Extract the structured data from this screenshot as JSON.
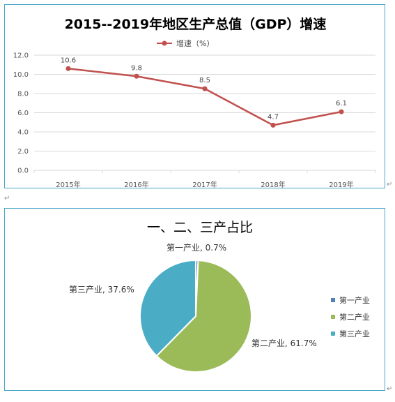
{
  "chart_data": [
    {
      "type": "line",
      "title": "2015--2019年地区生产总值（GDP）增速",
      "categories": [
        "2015年",
        "2016年",
        "2017年",
        "2018年",
        "2019年"
      ],
      "series": [
        {
          "name": "增速（%）",
          "values": [
            10.6,
            9.8,
            8.5,
            4.7,
            6.1
          ]
        }
      ],
      "data_labels": [
        "10.6",
        "9.8",
        "8.5",
        "4.7",
        "6.1"
      ],
      "yticks": [
        "0.0",
        "2.0",
        "4.0",
        "6.0",
        "8.0",
        "10.0",
        "12.0"
      ],
      "ylim": [
        0,
        12
      ],
      "grid": true,
      "legend": "top-center",
      "colors": {
        "line": "#c0504d"
      }
    },
    {
      "type": "pie",
      "title": "一、二、三产占比",
      "categories": [
        "第一产业",
        "第二产业",
        "第三产业"
      ],
      "values": [
        0.7,
        61.7,
        37.6
      ],
      "slice_labels": [
        "第一产业, 0.7%",
        "第二产业, 61.7%",
        "第三产业, 37.6%"
      ],
      "legend": "right",
      "colors": {
        "slices": [
          "#4f81bd",
          "#9bbb59",
          "#4bacc6"
        ]
      }
    }
  ]
}
